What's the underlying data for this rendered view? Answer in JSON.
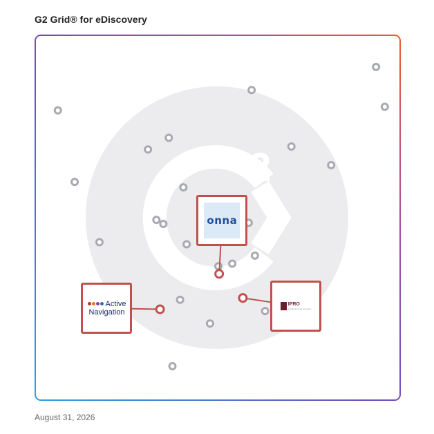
{
  "header": {
    "title": "G2 Grid® for eDiscovery"
  },
  "footer": {
    "date": "August 31, 2026"
  },
  "colors": {
    "frame_left": "#2f7fd6",
    "frame_right": "#e8573a",
    "frame_mid": "#7b4fb8",
    "marker": "#a8aab2",
    "highlight": "#c0504d",
    "watermark": "#ececee"
  },
  "chart_data": {
    "type": "scatter",
    "title": "G2 Grid® for eDiscovery",
    "xlabel": "",
    "ylabel": "",
    "xlim": [
      0,
      100
    ],
    "ylim": [
      0,
      100
    ],
    "grid": "quadrants",
    "points": [
      {
        "x": 6.2,
        "y": 79.4
      },
      {
        "x": 10.8,
        "y": 59.8
      },
      {
        "x": 17.6,
        "y": 43.3
      },
      {
        "x": 30.9,
        "y": 68.7
      },
      {
        "x": 36.6,
        "y": 71.9
      },
      {
        "x": 33.2,
        "y": 49.4
      },
      {
        "x": 35.1,
        "y": 48.3
      },
      {
        "x": 40.6,
        "y": 58.3
      },
      {
        "x": 41.5,
        "y": 42.7
      },
      {
        "x": 39.7,
        "y": 27.5
      },
      {
        "x": 37.6,
        "y": 9.3
      },
      {
        "x": 50.2,
        "y": 36.7
      },
      {
        "x": 54.0,
        "y": 37.4
      },
      {
        "x": 60.2,
        "y": 39.6
      },
      {
        "x": 58.5,
        "y": 48.6
      },
      {
        "x": 47.9,
        "y": 21.0
      },
      {
        "x": 63.0,
        "y": 24.4
      },
      {
        "x": 59.3,
        "y": 85.0
      },
      {
        "x": 70.2,
        "y": 69.5
      },
      {
        "x": 81.1,
        "y": 64.4
      },
      {
        "x": 93.4,
        "y": 91.3
      },
      {
        "x": 95.8,
        "y": 80.4
      }
    ],
    "highlighted": [
      {
        "name": "onna",
        "x": 50.4,
        "y": 34.6,
        "logo_x": 51.2,
        "logo_y": 49.2
      },
      {
        "name": "Active Navigation",
        "x": 34.2,
        "y": 24.9,
        "logo_x": 19.6,
        "logo_y": 25.2
      },
      {
        "name": "IPRO",
        "x": 56.9,
        "y": 28.0,
        "logo_x": 71.4,
        "logo_y": 25.8
      }
    ]
  },
  "logos": {
    "onna": {
      "text": "onna"
    },
    "active_navigation": {
      "line1": "Active",
      "line2": "Navigation",
      "dot_colors": [
        "#c9302c",
        "#e07b1f",
        "#8e3fa0",
        "#2c6fb5"
      ]
    },
    "ipro": {
      "text": "IPRO",
      "tagline": "a Kaleidoscope company"
    }
  }
}
